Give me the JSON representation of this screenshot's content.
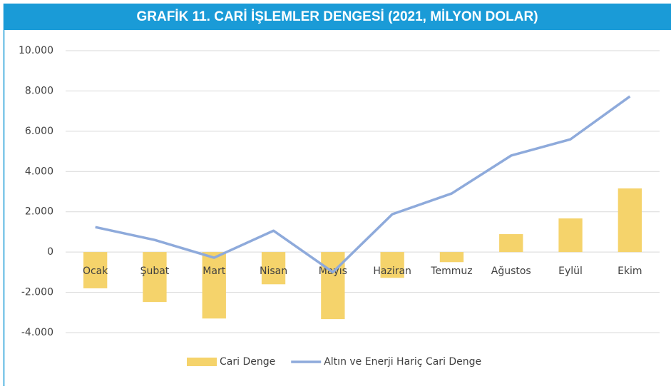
{
  "chart_data": {
    "type": "bar_line",
    "title": "GRAFİK 11. CARİ İŞLEMLER DENGESİ (2021, MİLYON DOLAR)",
    "categories": [
      "Ocak",
      "Şubat",
      "Mart",
      "Nisan",
      "Mayıs",
      "Haziran",
      "Temmuz",
      "Ağustos",
      "Eylül",
      "Ekim"
    ],
    "series": [
      {
        "name": "Cari Denge",
        "type": "bar",
        "color": "#f5d36b",
        "values": [
          -1800,
          -2480,
          -3300,
          -1600,
          -3330,
          -1280,
          -500,
          890,
          1670,
          3160
        ]
      },
      {
        "name": "Altın ve Enerji Hariç Cari Denge",
        "type": "line",
        "color": "#8eaadb",
        "values": [
          1240,
          600,
          -280,
          1060,
          -1000,
          1880,
          2910,
          4790,
          5600,
          7730
        ]
      }
    ],
    "ylim": [
      -4000,
      10000
    ],
    "yticks": [
      {
        "value": -4000,
        "label": "-4.000"
      },
      {
        "value": -2000,
        "label": "-2.000"
      },
      0,
      {
        "value": 2000,
        "label": "2.000"
      },
      {
        "value": 4000,
        "label": "4.000"
      },
      {
        "value": 6000,
        "label": "6.000"
      },
      {
        "value": 8000,
        "label": "8.000"
      },
      {
        "value": 10000,
        "label": "10.000"
      }
    ],
    "grid": true,
    "legend": "bottom"
  }
}
